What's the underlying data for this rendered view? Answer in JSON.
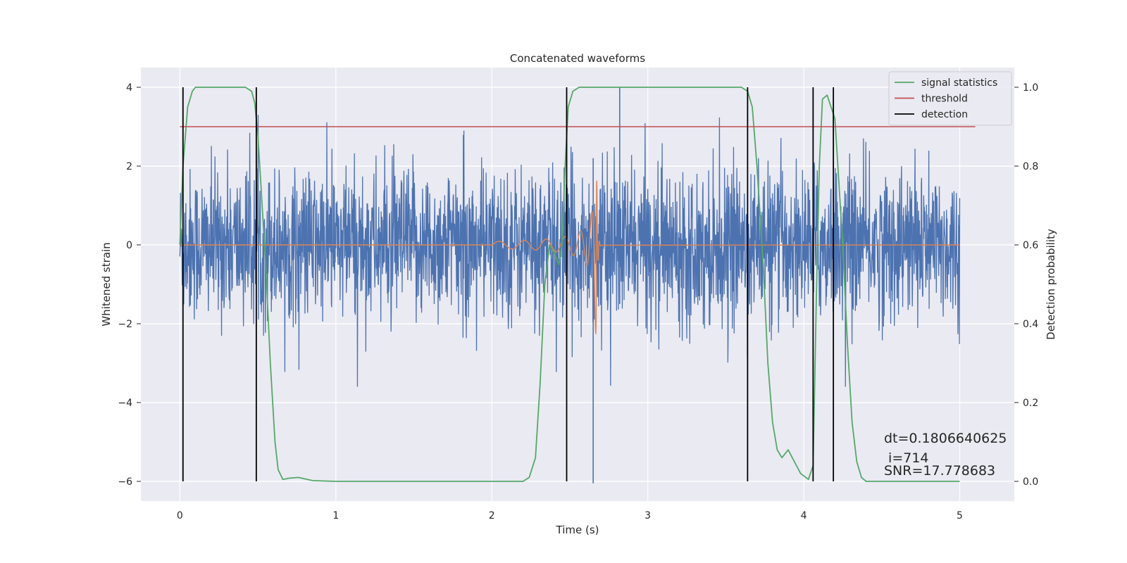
{
  "chart_data": {
    "type": "line",
    "title": "Concatenated waveforms",
    "xlabel": "Time (s)",
    "ylabel": "Whitened strain",
    "y2label": "Detection probability",
    "xlim": [
      -0.25,
      5.35
    ],
    "ylim": [
      -6.5,
      4.5
    ],
    "y2lim": [
      -0.05,
      1.05
    ],
    "xticks": [
      0,
      1,
      2,
      3,
      4,
      5
    ],
    "yticks": [
      -6,
      -4,
      -2,
      0,
      2,
      4
    ],
    "y2ticks": [
      0.0,
      0.2,
      0.4,
      0.6,
      0.8,
      1.0
    ],
    "xtick_labels": [
      "0",
      "1",
      "2",
      "3",
      "4",
      "5"
    ],
    "ytick_labels": [
      "−6",
      "−4",
      "−2",
      "0",
      "2",
      "4"
    ],
    "y2tick_labels": [
      "0.0",
      "0.2",
      "0.4",
      "0.6",
      "0.8",
      "1.0"
    ],
    "grid": true,
    "legend_position": "top-right",
    "colors": {
      "background": "#eaeaf2",
      "strain": "#4c72b0",
      "injected": "#dd8452",
      "signal_statistics": "#55a868",
      "threshold": "#c44e52",
      "detection": "#000000"
    },
    "series": [
      {
        "name": "signal statistics",
        "axis": "right",
        "x": [
          0.0,
          0.02,
          0.05,
          0.08,
          0.1,
          0.15,
          0.3,
          0.42,
          0.46,
          0.48,
          0.5,
          0.52,
          0.55,
          0.58,
          0.61,
          0.63,
          0.66,
          0.7,
          0.76,
          0.85,
          1.0,
          2.2,
          2.24,
          2.28,
          2.31,
          2.34,
          2.37,
          2.4,
          2.43,
          2.45,
          2.47,
          2.49,
          2.52,
          2.56,
          2.62,
          3.5,
          3.6,
          3.64,
          3.67,
          3.7,
          3.74,
          3.77,
          3.8,
          3.83,
          3.86,
          3.9,
          3.94,
          3.98,
          4.03,
          4.06,
          4.08,
          4.1,
          4.12,
          4.15,
          4.2,
          4.25,
          4.28,
          4.31,
          4.34,
          4.37,
          4.4,
          4.5,
          5.0
        ],
        "y": [
          0.6,
          0.8,
          0.95,
          0.99,
          1.0,
          1.0,
          1.0,
          1.0,
          0.99,
          0.96,
          0.88,
          0.75,
          0.55,
          0.3,
          0.1,
          0.03,
          0.005,
          0.008,
          0.01,
          0.002,
          0.0,
          0.0,
          0.01,
          0.06,
          0.25,
          0.5,
          0.6,
          0.58,
          0.55,
          0.6,
          0.8,
          0.95,
          0.99,
          1.0,
          1.0,
          1.0,
          1.0,
          0.99,
          0.95,
          0.8,
          0.55,
          0.3,
          0.15,
          0.08,
          0.06,
          0.08,
          0.05,
          0.02,
          0.005,
          0.04,
          0.45,
          0.8,
          0.97,
          0.98,
          0.92,
          0.6,
          0.35,
          0.15,
          0.05,
          0.01,
          0.0,
          0.0,
          0.0
        ]
      },
      {
        "name": "threshold",
        "axis": "right",
        "x": [
          0.0,
          5.1
        ],
        "y": [
          0.9,
          0.9
        ]
      },
      {
        "name": "detection",
        "axis": "right",
        "x": [
          0.02,
          0.49,
          2.48,
          3.64,
          4.06,
          4.19
        ],
        "y_range": [
          0.0,
          1.0
        ]
      }
    ],
    "annotations": [
      "dt=0.1806640625",
      " i=714",
      "SNR=17.778683"
    ]
  }
}
